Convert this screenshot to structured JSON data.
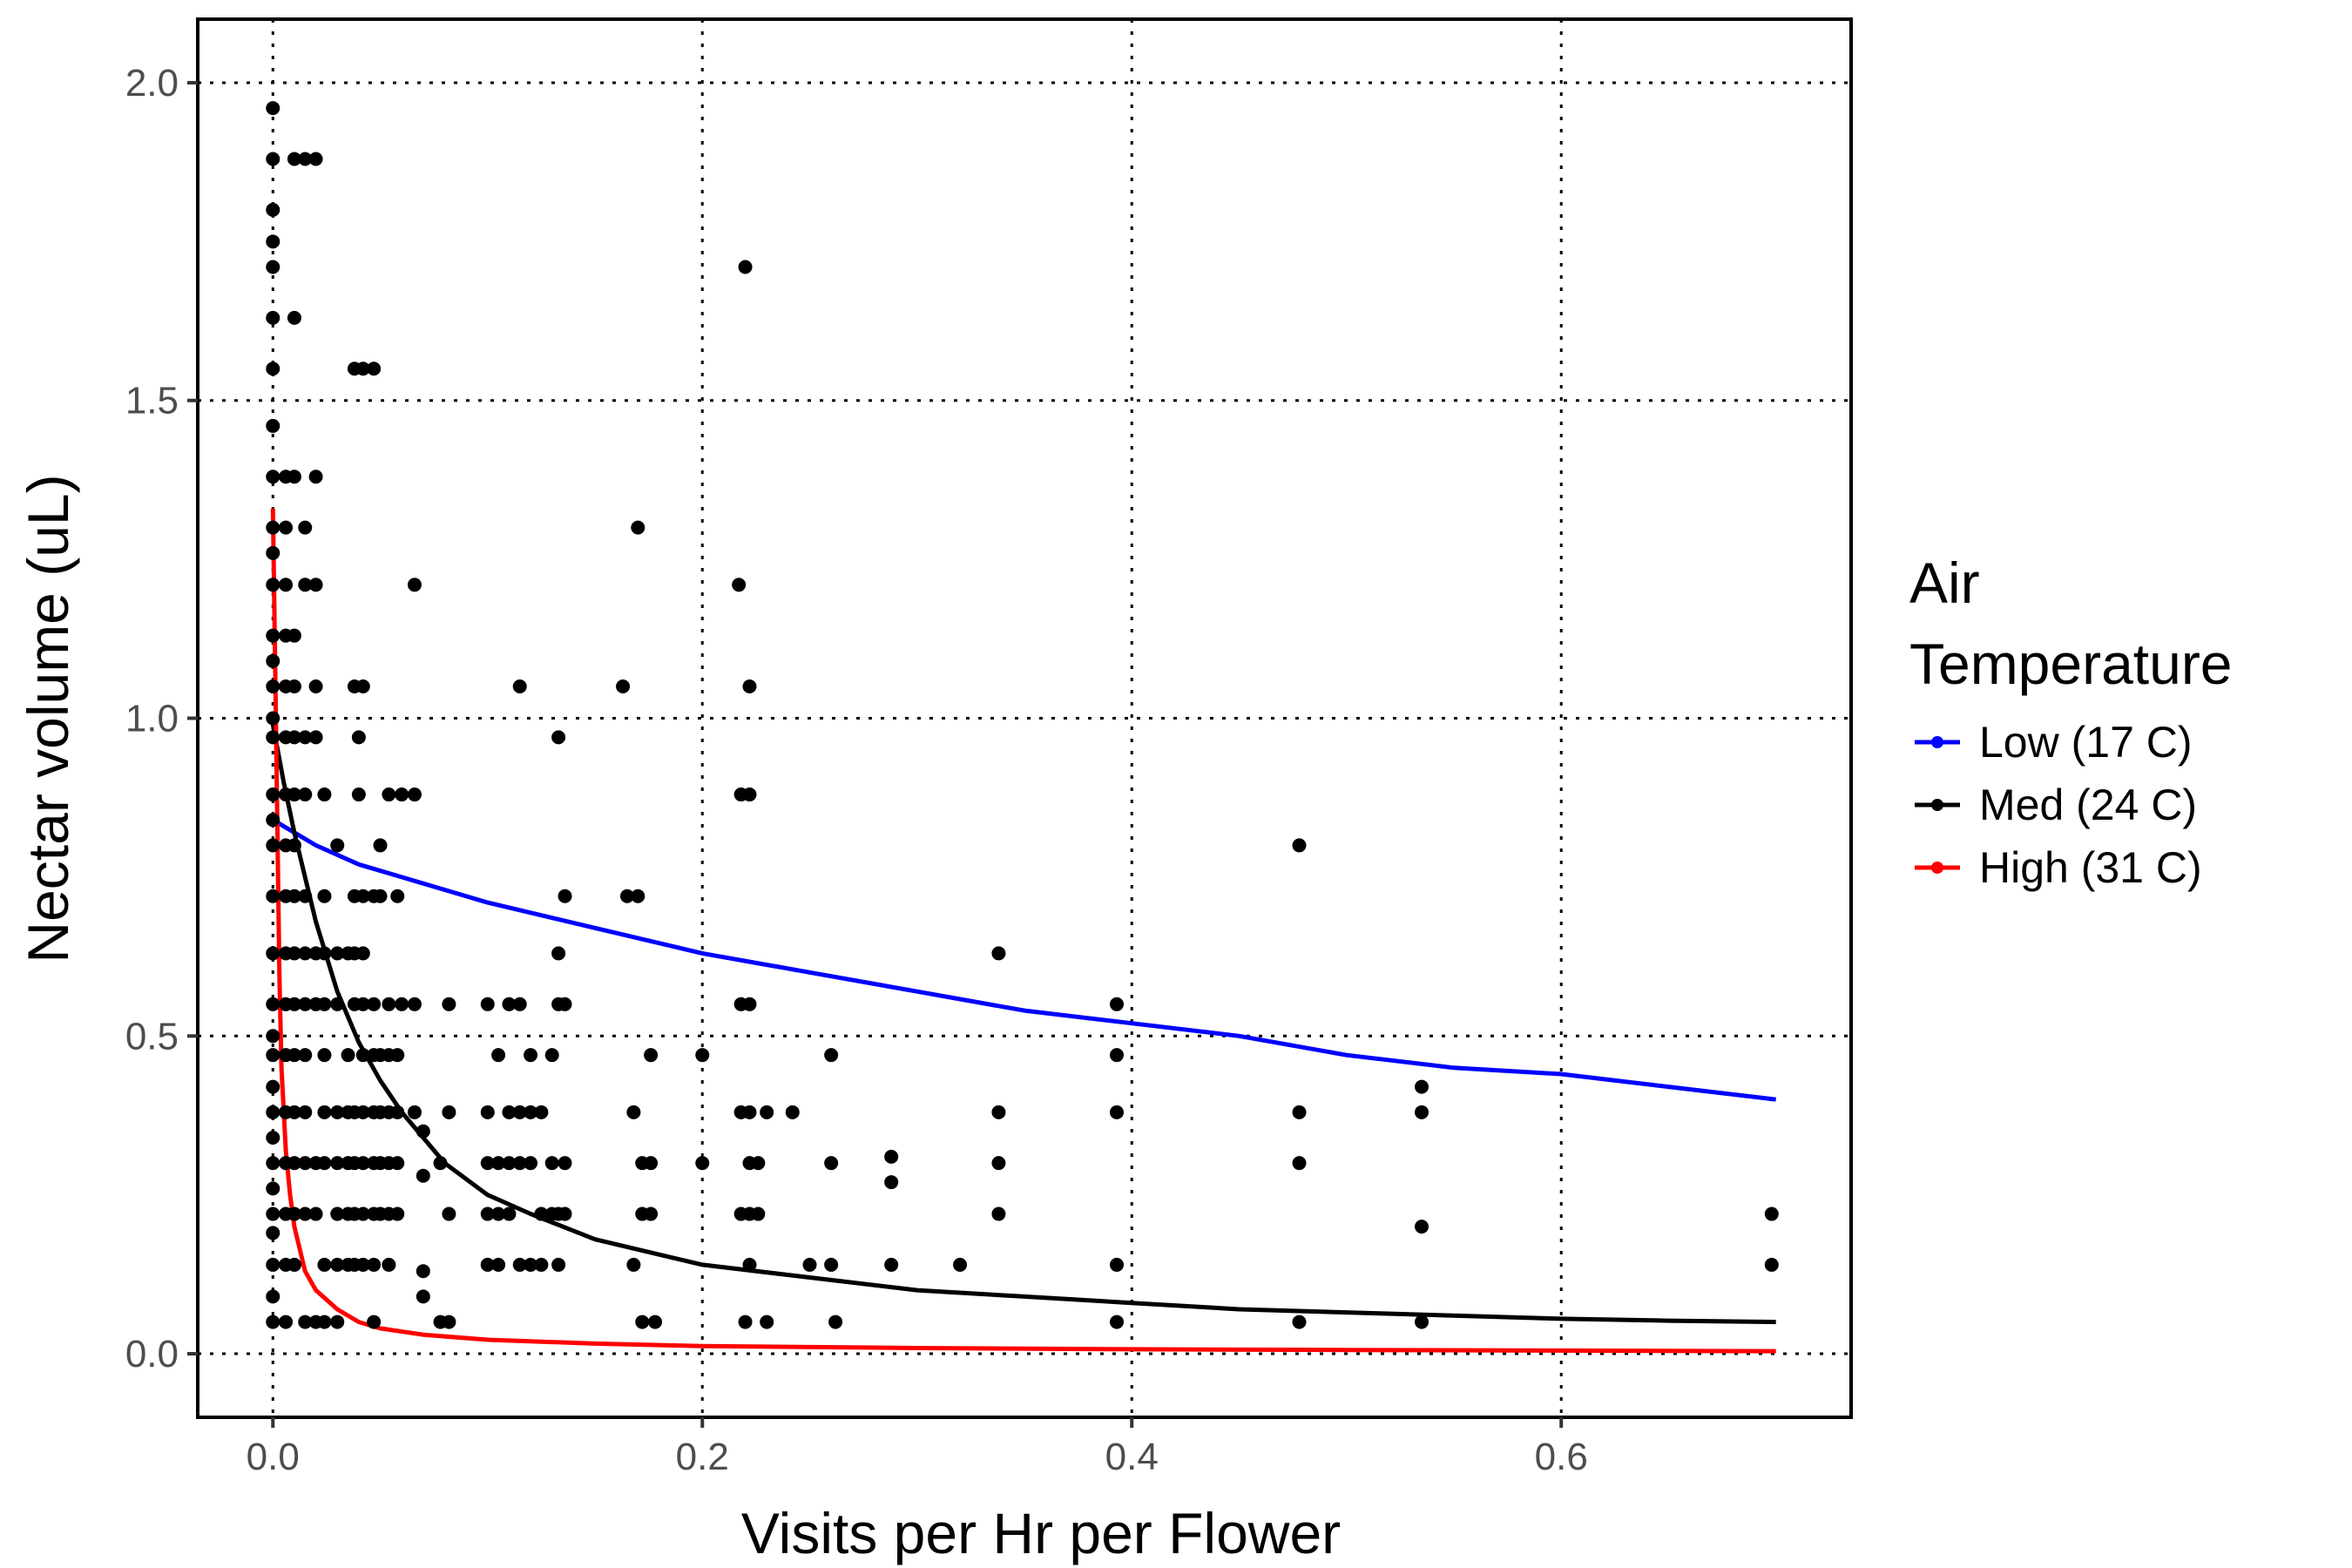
{
  "chart_data": {
    "type": "scatter",
    "xlabel": "Visits per Hr per Flower",
    "ylabel": "Nectar volume (uL)",
    "xlim": [
      -0.035,
      0.735
    ],
    "ylim": [
      -0.1,
      2.1
    ],
    "x_ticks": [
      0.0,
      0.2,
      0.4,
      0.6
    ],
    "x_tick_labels": [
      "0.0",
      "0.2",
      "0.4",
      "0.6"
    ],
    "y_ticks": [
      0.0,
      0.5,
      1.0,
      1.5,
      2.0
    ],
    "y_tick_labels": [
      "0.0",
      "0.5",
      "1.0",
      "1.5",
      "2.0"
    ],
    "grid": true,
    "legend": {
      "title_lines": [
        "Air",
        "Temperature"
      ],
      "placement": "right",
      "entries": [
        {
          "label": "Low (17 C)",
          "color": "#0000ff"
        },
        {
          "label": "Med (24 C)",
          "color": "#000000"
        },
        {
          "label": "High (31 C)",
          "color": "#ff0000"
        }
      ]
    },
    "points": [
      [
        0.0,
        1.96
      ],
      [
        0.0,
        1.88
      ],
      [
        0.0,
        1.8
      ],
      [
        0.0,
        1.75
      ],
      [
        0.0,
        1.71
      ],
      [
        0.0,
        1.63
      ],
      [
        0.0,
        1.55
      ],
      [
        0.0,
        1.46
      ],
      [
        0.0,
        1.38
      ],
      [
        0.0,
        1.3
      ],
      [
        0.0,
        1.26
      ],
      [
        0.0,
        1.21
      ],
      [
        0.0,
        1.13
      ],
      [
        0.0,
        1.09
      ],
      [
        0.0,
        1.05
      ],
      [
        0.0,
        1.0
      ],
      [
        0.0,
        0.97
      ],
      [
        0.0,
        0.88
      ],
      [
        0.0,
        0.84
      ],
      [
        0.0,
        0.8
      ],
      [
        0.0,
        0.72
      ],
      [
        0.0,
        0.63
      ],
      [
        0.0,
        0.55
      ],
      [
        0.0,
        0.5
      ],
      [
        0.0,
        0.47
      ],
      [
        0.0,
        0.42
      ],
      [
        0.0,
        0.38
      ],
      [
        0.0,
        0.34
      ],
      [
        0.0,
        0.3
      ],
      [
        0.0,
        0.26
      ],
      [
        0.0,
        0.22
      ],
      [
        0.0,
        0.19
      ],
      [
        0.0,
        0.14
      ],
      [
        0.0,
        0.09
      ],
      [
        0.0,
        0.05
      ],
      [
        0.006,
        1.38
      ],
      [
        0.006,
        1.3
      ],
      [
        0.006,
        1.21
      ],
      [
        0.006,
        1.13
      ],
      [
        0.006,
        1.05
      ],
      [
        0.006,
        0.97
      ],
      [
        0.006,
        0.88
      ],
      [
        0.006,
        0.8
      ],
      [
        0.006,
        0.72
      ],
      [
        0.006,
        0.63
      ],
      [
        0.006,
        0.55
      ],
      [
        0.006,
        0.47
      ],
      [
        0.006,
        0.38
      ],
      [
        0.006,
        0.3
      ],
      [
        0.006,
        0.22
      ],
      [
        0.006,
        0.14
      ],
      [
        0.006,
        0.05
      ],
      [
        0.01,
        1.88
      ],
      [
        0.01,
        1.38
      ],
      [
        0.01,
        1.13
      ],
      [
        0.01,
        1.05
      ],
      [
        0.01,
        0.97
      ],
      [
        0.01,
        0.88
      ],
      [
        0.01,
        0.72
      ],
      [
        0.01,
        0.63
      ],
      [
        0.01,
        0.55
      ],
      [
        0.01,
        0.47
      ],
      [
        0.01,
        0.38
      ],
      [
        0.01,
        0.3
      ],
      [
        0.01,
        0.22
      ],
      [
        0.01,
        0.14
      ],
      [
        0.015,
        1.88
      ],
      [
        0.015,
        1.3
      ],
      [
        0.015,
        1.21
      ],
      [
        0.015,
        0.97
      ],
      [
        0.015,
        0.88
      ],
      [
        0.015,
        0.72
      ],
      [
        0.015,
        0.63
      ],
      [
        0.015,
        0.55
      ],
      [
        0.015,
        0.47
      ],
      [
        0.015,
        0.38
      ],
      [
        0.015,
        0.3
      ],
      [
        0.015,
        0.22
      ],
      [
        0.015,
        0.05
      ],
      [
        0.02,
        1.88
      ],
      [
        0.02,
        1.38
      ],
      [
        0.02,
        1.21
      ],
      [
        0.02,
        1.05
      ],
      [
        0.02,
        0.97
      ],
      [
        0.02,
        0.63
      ],
      [
        0.02,
        0.55
      ],
      [
        0.02,
        0.3
      ],
      [
        0.02,
        0.22
      ],
      [
        0.02,
        0.05
      ],
      [
        0.024,
        0.88
      ],
      [
        0.024,
        0.72
      ],
      [
        0.024,
        0.63
      ],
      [
        0.024,
        0.55
      ],
      [
        0.024,
        0.47
      ],
      [
        0.024,
        0.38
      ],
      [
        0.024,
        0.3
      ],
      [
        0.024,
        0.14
      ],
      [
        0.024,
        0.05
      ],
      [
        0.01,
        1.63
      ],
      [
        0.01,
        0.8
      ],
      [
        0.03,
        0.8
      ],
      [
        0.03,
        0.63
      ],
      [
        0.03,
        0.55
      ],
      [
        0.03,
        0.38
      ],
      [
        0.03,
        0.3
      ],
      [
        0.03,
        0.22
      ],
      [
        0.03,
        0.14
      ],
      [
        0.03,
        0.05
      ],
      [
        0.035,
        0.63
      ],
      [
        0.035,
        0.47
      ],
      [
        0.035,
        0.38
      ],
      [
        0.035,
        0.3
      ],
      [
        0.035,
        0.22
      ],
      [
        0.035,
        0.14
      ],
      [
        0.038,
        1.55
      ],
      [
        0.038,
        1.05
      ],
      [
        0.038,
        0.72
      ],
      [
        0.038,
        0.63
      ],
      [
        0.038,
        0.55
      ],
      [
        0.038,
        0.38
      ],
      [
        0.038,
        0.3
      ],
      [
        0.038,
        0.22
      ],
      [
        0.038,
        0.14
      ],
      [
        0.04,
        0.97
      ],
      [
        0.04,
        0.88
      ],
      [
        0.042,
        1.55
      ],
      [
        0.042,
        1.05
      ],
      [
        0.042,
        0.72
      ],
      [
        0.042,
        0.63
      ],
      [
        0.042,
        0.55
      ],
      [
        0.042,
        0.47
      ],
      [
        0.042,
        0.38
      ],
      [
        0.042,
        0.3
      ],
      [
        0.042,
        0.22
      ],
      [
        0.042,
        0.14
      ],
      [
        0.047,
        1.55
      ],
      [
        0.047,
        0.72
      ],
      [
        0.047,
        0.55
      ],
      [
        0.047,
        0.47
      ],
      [
        0.047,
        0.38
      ],
      [
        0.047,
        0.3
      ],
      [
        0.047,
        0.22
      ],
      [
        0.047,
        0.14
      ],
      [
        0.047,
        0.05
      ],
      [
        0.05,
        0.8
      ],
      [
        0.05,
        0.72
      ],
      [
        0.05,
        0.47
      ],
      [
        0.05,
        0.38
      ],
      [
        0.05,
        0.3
      ],
      [
        0.05,
        0.22
      ],
      [
        0.054,
        0.88
      ],
      [
        0.054,
        0.55
      ],
      [
        0.054,
        0.47
      ],
      [
        0.054,
        0.38
      ],
      [
        0.054,
        0.3
      ],
      [
        0.054,
        0.22
      ],
      [
        0.054,
        0.14
      ],
      [
        0.058,
        0.72
      ],
      [
        0.058,
        0.47
      ],
      [
        0.058,
        0.38
      ],
      [
        0.058,
        0.3
      ],
      [
        0.058,
        0.22
      ],
      [
        0.06,
        0.88
      ],
      [
        0.06,
        0.55
      ],
      [
        0.066,
        0.88
      ],
      [
        0.066,
        1.21
      ],
      [
        0.066,
        0.55
      ],
      [
        0.066,
        0.38
      ],
      [
        0.07,
        0.35
      ],
      [
        0.07,
        0.28
      ],
      [
        0.07,
        0.13
      ],
      [
        0.07,
        0.09
      ],
      [
        0.078,
        0.3
      ],
      [
        0.078,
        0.05
      ],
      [
        0.082,
        0.55
      ],
      [
        0.082,
        0.38
      ],
      [
        0.082,
        0.22
      ],
      [
        0.082,
        0.05
      ],
      [
        0.1,
        0.55
      ],
      [
        0.1,
        0.38
      ],
      [
        0.1,
        0.3
      ],
      [
        0.1,
        0.22
      ],
      [
        0.1,
        0.14
      ],
      [
        0.105,
        0.47
      ],
      [
        0.105,
        0.3
      ],
      [
        0.105,
        0.22
      ],
      [
        0.105,
        0.14
      ],
      [
        0.11,
        0.55
      ],
      [
        0.11,
        0.38
      ],
      [
        0.11,
        0.3
      ],
      [
        0.11,
        0.22
      ],
      [
        0.115,
        1.05
      ],
      [
        0.115,
        0.55
      ],
      [
        0.115,
        0.38
      ],
      [
        0.115,
        0.3
      ],
      [
        0.115,
        0.14
      ],
      [
        0.12,
        0.47
      ],
      [
        0.12,
        0.38
      ],
      [
        0.12,
        0.3
      ],
      [
        0.12,
        0.14
      ],
      [
        0.125,
        0.38
      ],
      [
        0.125,
        0.22
      ],
      [
        0.125,
        0.14
      ],
      [
        0.13,
        0.47
      ],
      [
        0.13,
        0.3
      ],
      [
        0.13,
        0.22
      ],
      [
        0.133,
        0.97
      ],
      [
        0.133,
        0.63
      ],
      [
        0.133,
        0.55
      ],
      [
        0.133,
        0.22
      ],
      [
        0.133,
        0.14
      ],
      [
        0.136,
        0.72
      ],
      [
        0.136,
        0.55
      ],
      [
        0.136,
        0.3
      ],
      [
        0.136,
        0.22
      ],
      [
        0.163,
        1.05
      ],
      [
        0.165,
        0.72
      ],
      [
        0.17,
        0.72
      ],
      [
        0.168,
        0.38
      ],
      [
        0.168,
        0.14
      ],
      [
        0.17,
        1.3
      ],
      [
        0.172,
        0.3
      ],
      [
        0.172,
        0.22
      ],
      [
        0.172,
        0.05
      ],
      [
        0.176,
        0.47
      ],
      [
        0.176,
        0.3
      ],
      [
        0.176,
        0.22
      ],
      [
        0.178,
        0.05
      ],
      [
        0.2,
        0.47
      ],
      [
        0.2,
        0.3
      ],
      [
        0.217,
        1.21
      ],
      [
        0.218,
        0.88
      ],
      [
        0.218,
        0.55
      ],
      [
        0.218,
        0.38
      ],
      [
        0.218,
        0.22
      ],
      [
        0.22,
        1.71
      ],
      [
        0.22,
        0.05
      ],
      [
        0.222,
        1.05
      ],
      [
        0.222,
        0.88
      ],
      [
        0.222,
        0.55
      ],
      [
        0.222,
        0.38
      ],
      [
        0.222,
        0.3
      ],
      [
        0.222,
        0.22
      ],
      [
        0.222,
        0.14
      ],
      [
        0.226,
        0.3
      ],
      [
        0.226,
        0.22
      ],
      [
        0.23,
        0.38
      ],
      [
        0.23,
        0.05
      ],
      [
        0.242,
        0.38
      ],
      [
        0.25,
        0.14
      ],
      [
        0.26,
        0.47
      ],
      [
        0.26,
        0.3
      ],
      [
        0.26,
        0.14
      ],
      [
        0.262,
        0.05
      ],
      [
        0.288,
        0.31
      ],
      [
        0.288,
        0.27
      ],
      [
        0.288,
        0.14
      ],
      [
        0.32,
        0.14
      ],
      [
        0.338,
        0.63
      ],
      [
        0.338,
        0.38
      ],
      [
        0.338,
        0.3
      ],
      [
        0.338,
        0.22
      ],
      [
        0.393,
        0.55
      ],
      [
        0.393,
        0.47
      ],
      [
        0.393,
        0.38
      ],
      [
        0.393,
        0.14
      ],
      [
        0.393,
        0.05
      ],
      [
        0.478,
        0.8
      ],
      [
        0.478,
        0.38
      ],
      [
        0.478,
        0.3
      ],
      [
        0.478,
        0.05
      ],
      [
        0.535,
        0.42
      ],
      [
        0.535,
        0.38
      ],
      [
        0.535,
        0.2
      ],
      [
        0.535,
        0.05
      ],
      [
        0.698,
        0.22
      ],
      [
        0.698,
        0.14
      ]
    ],
    "series": [
      {
        "name": "Low (17 C)",
        "color": "#0000ff",
        "x": [
          0.0,
          0.02,
          0.04,
          0.06,
          0.08,
          0.1,
          0.15,
          0.2,
          0.25,
          0.3,
          0.35,
          0.4,
          0.45,
          0.5,
          0.55,
          0.6,
          0.65,
          0.7
        ],
        "y": [
          0.84,
          0.8,
          0.77,
          0.75,
          0.73,
          0.71,
          0.67,
          0.63,
          0.6,
          0.57,
          0.54,
          0.52,
          0.5,
          0.47,
          0.45,
          0.44,
          0.42,
          0.4
        ]
      },
      {
        "name": "Med (24 C)",
        "color": "#000000",
        "x": [
          0.0,
          0.005,
          0.01,
          0.015,
          0.02,
          0.03,
          0.04,
          0.05,
          0.06,
          0.08,
          0.1,
          0.12,
          0.15,
          0.2,
          0.25,
          0.3,
          0.35,
          0.4,
          0.45,
          0.5,
          0.55,
          0.6,
          0.65,
          0.7
        ],
        "y": [
          0.99,
          0.9,
          0.82,
          0.75,
          0.68,
          0.57,
          0.49,
          0.43,
          0.38,
          0.3,
          0.25,
          0.22,
          0.18,
          0.14,
          0.12,
          0.1,
          0.09,
          0.08,
          0.07,
          0.065,
          0.06,
          0.055,
          0.052,
          0.05
        ],
        "show_markers": false
      },
      {
        "name": "High (31 C)",
        "color": "#ff0000",
        "x": [
          0.0,
          0.001,
          0.002,
          0.003,
          0.004,
          0.006,
          0.008,
          0.01,
          0.015,
          0.02,
          0.03,
          0.04,
          0.05,
          0.07,
          0.1,
          0.15,
          0.2,
          0.3,
          0.4,
          0.5,
          0.6,
          0.7
        ],
        "y": [
          1.33,
          1.1,
          0.85,
          0.6,
          0.45,
          0.32,
          0.25,
          0.2,
          0.13,
          0.1,
          0.07,
          0.05,
          0.04,
          0.03,
          0.022,
          0.016,
          0.012,
          0.009,
          0.007,
          0.006,
          0.005,
          0.004
        ]
      }
    ]
  }
}
